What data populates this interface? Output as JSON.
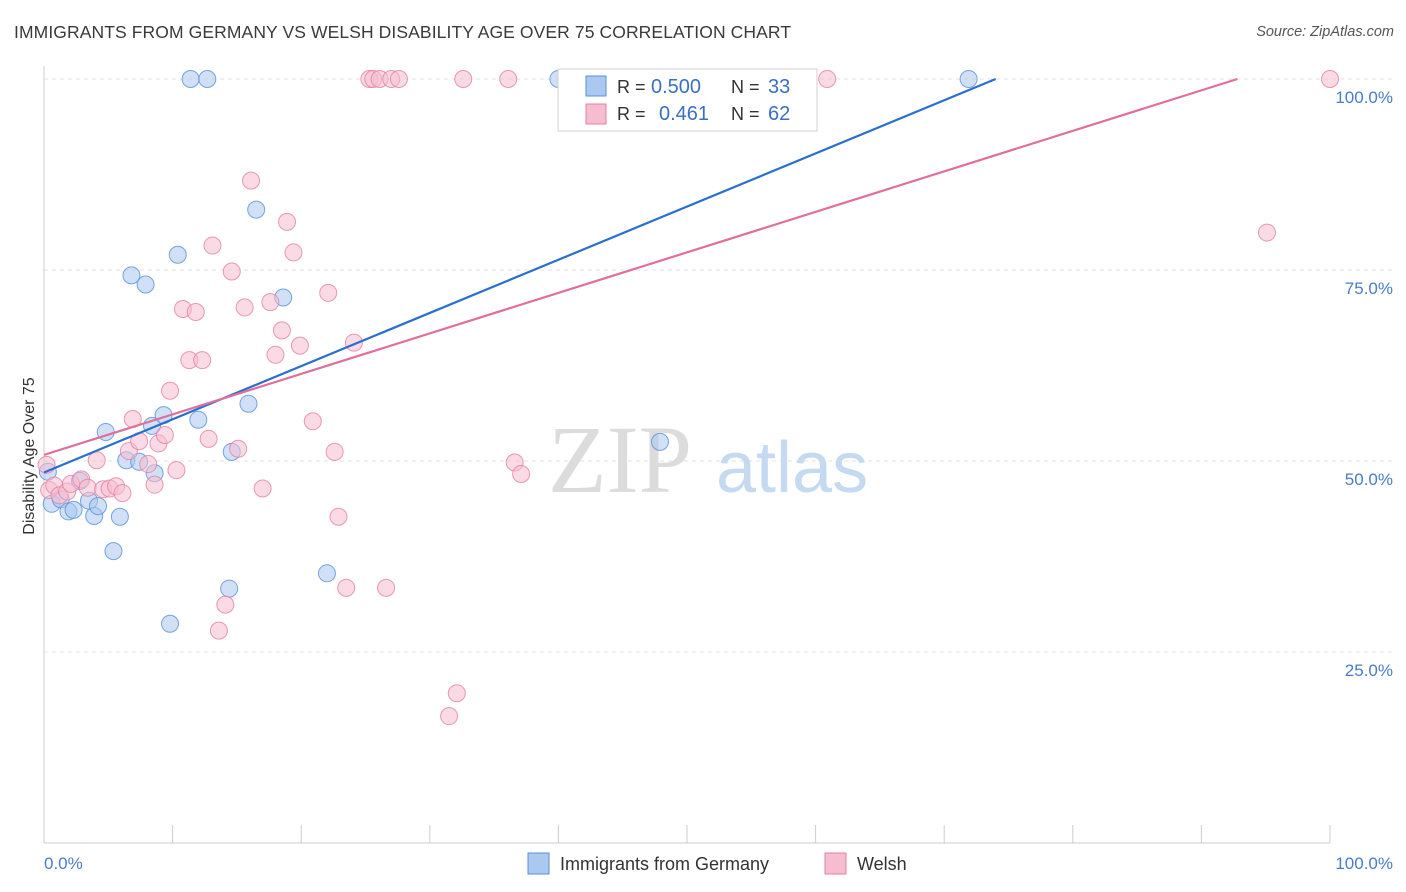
{
  "title": "IMMIGRANTS FROM GERMANY VS WELSH DISABILITY AGE OVER 75 CORRELATION CHART",
  "source": "Source: ZipAtlas.com",
  "watermark": {
    "zip": "ZIP",
    "atlas": "atlas"
  },
  "colors": {
    "blue": "#5b8fd6",
    "blue_fill": "#aac8f0",
    "blue_line": "#2a6fcc",
    "pink": "#e57fa2",
    "pink_fill": "#f6bdd0",
    "pink_line": "#e0709a",
    "tick": "#4a7cc9"
  },
  "chart_data": {
    "type": "scatter",
    "xlabel": "",
    "ylabel": "Disability Age Over 75",
    "xlim": [
      0,
      100
    ],
    "ylim": [
      0,
      100
    ],
    "x_tick_labels": [
      "0.0%",
      "100.0%"
    ],
    "y_tick_labels": [
      "25.0%",
      "50.0%",
      "75.0%",
      "100.0%"
    ],
    "y_ticks": [
      25,
      50,
      75,
      100
    ],
    "grid": true,
    "legend_position": "top-center",
    "stats": [
      {
        "r_label": "R =",
        "r": "0.500",
        "n_label": "N =",
        "n": "33"
      },
      {
        "r_label": "R =",
        "r": "0.461",
        "n_label": "N =",
        "n": "62"
      }
    ],
    "series": [
      {
        "name": "Immigrants from Germany",
        "color": "#5b8fd6",
        "trend": [
          [
            0,
            48.5
          ],
          [
            74,
            100
          ]
        ],
        "points": [
          [
            0.3,
            48.6
          ],
          [
            0.6,
            44.4
          ],
          [
            1.3,
            45.0
          ],
          [
            1.9,
            43.4
          ],
          [
            2.3,
            43.6
          ],
          [
            2.8,
            47.4
          ],
          [
            3.5,
            44.8
          ],
          [
            3.9,
            42.8
          ],
          [
            4.2,
            44.1
          ],
          [
            4.8,
            53.8
          ],
          [
            5.4,
            38.2
          ],
          [
            5.9,
            42.7
          ],
          [
            6.4,
            50.1
          ],
          [
            6.8,
            74.3
          ],
          [
            7.4,
            49.9
          ],
          [
            7.9,
            73.1
          ],
          [
            8.4,
            54.6
          ],
          [
            8.6,
            48.4
          ],
          [
            9.3,
            56.0
          ],
          [
            9.8,
            28.7
          ],
          [
            10.4,
            77.0
          ],
          [
            11.4,
            100
          ],
          [
            12.0,
            55.4
          ],
          [
            12.7,
            100
          ],
          [
            14.4,
            33.3
          ],
          [
            14.6,
            51.2
          ],
          [
            15.9,
            57.5
          ],
          [
            16.5,
            82.9
          ],
          [
            18.6,
            71.4
          ],
          [
            22.0,
            35.3
          ],
          [
            40.0,
            100
          ],
          [
            47.9,
            52.5
          ],
          [
            71.9,
            100
          ]
        ]
      },
      {
        "name": "Welsh",
        "color": "#e57fa2",
        "trend": [
          [
            0,
            50.8
          ],
          [
            92.8,
            100
          ]
        ],
        "points": [
          [
            0.2,
            49.5
          ],
          [
            0.4,
            46.2
          ],
          [
            0.8,
            46.8
          ],
          [
            1.2,
            45.5
          ],
          [
            1.8,
            46.0
          ],
          [
            2.1,
            47.0
          ],
          [
            2.9,
            47.6
          ],
          [
            3.4,
            46.5
          ],
          [
            4.1,
            50.1
          ],
          [
            4.6,
            46.3
          ],
          [
            5.1,
            46.4
          ],
          [
            5.6,
            46.7
          ],
          [
            6.1,
            45.8
          ],
          [
            6.6,
            51.3
          ],
          [
            6.9,
            55.5
          ],
          [
            7.4,
            52.6
          ],
          [
            8.1,
            49.6
          ],
          [
            8.6,
            46.9
          ],
          [
            8.9,
            52.3
          ],
          [
            9.4,
            53.4
          ],
          [
            9.8,
            59.2
          ],
          [
            10.3,
            48.8
          ],
          [
            10.8,
            69.9
          ],
          [
            11.3,
            63.2
          ],
          [
            11.8,
            69.5
          ],
          [
            12.3,
            63.2
          ],
          [
            12.8,
            52.9
          ],
          [
            13.1,
            78.2
          ],
          [
            13.6,
            27.8
          ],
          [
            14.1,
            31.2
          ],
          [
            14.6,
            74.8
          ],
          [
            15.1,
            51.6
          ],
          [
            15.6,
            70.1
          ],
          [
            16.1,
            86.7
          ],
          [
            17.0,
            46.4
          ],
          [
            17.6,
            70.8
          ],
          [
            18.0,
            63.9
          ],
          [
            18.5,
            67.1
          ],
          [
            18.9,
            81.3
          ],
          [
            19.4,
            77.3
          ],
          [
            19.9,
            65.1
          ],
          [
            20.9,
            55.2
          ],
          [
            22.1,
            72.0
          ],
          [
            22.6,
            51.2
          ],
          [
            22.9,
            42.7
          ],
          [
            23.5,
            33.4
          ],
          [
            24.1,
            65.5
          ],
          [
            25.3,
            100
          ],
          [
            25.6,
            100
          ],
          [
            26.1,
            100
          ],
          [
            26.6,
            33.4
          ],
          [
            27.0,
            100
          ],
          [
            27.6,
            100
          ],
          [
            31.5,
            16.6
          ],
          [
            32.1,
            19.6
          ],
          [
            32.6,
            100
          ],
          [
            36.1,
            100
          ],
          [
            36.6,
            49.8
          ],
          [
            37.1,
            48.3
          ],
          [
            60.9,
            100
          ],
          [
            95.1,
            79.9
          ],
          [
            100,
            100
          ]
        ]
      }
    ]
  },
  "legend_bottom": [
    "Immigrants from Germany",
    "Welsh"
  ]
}
